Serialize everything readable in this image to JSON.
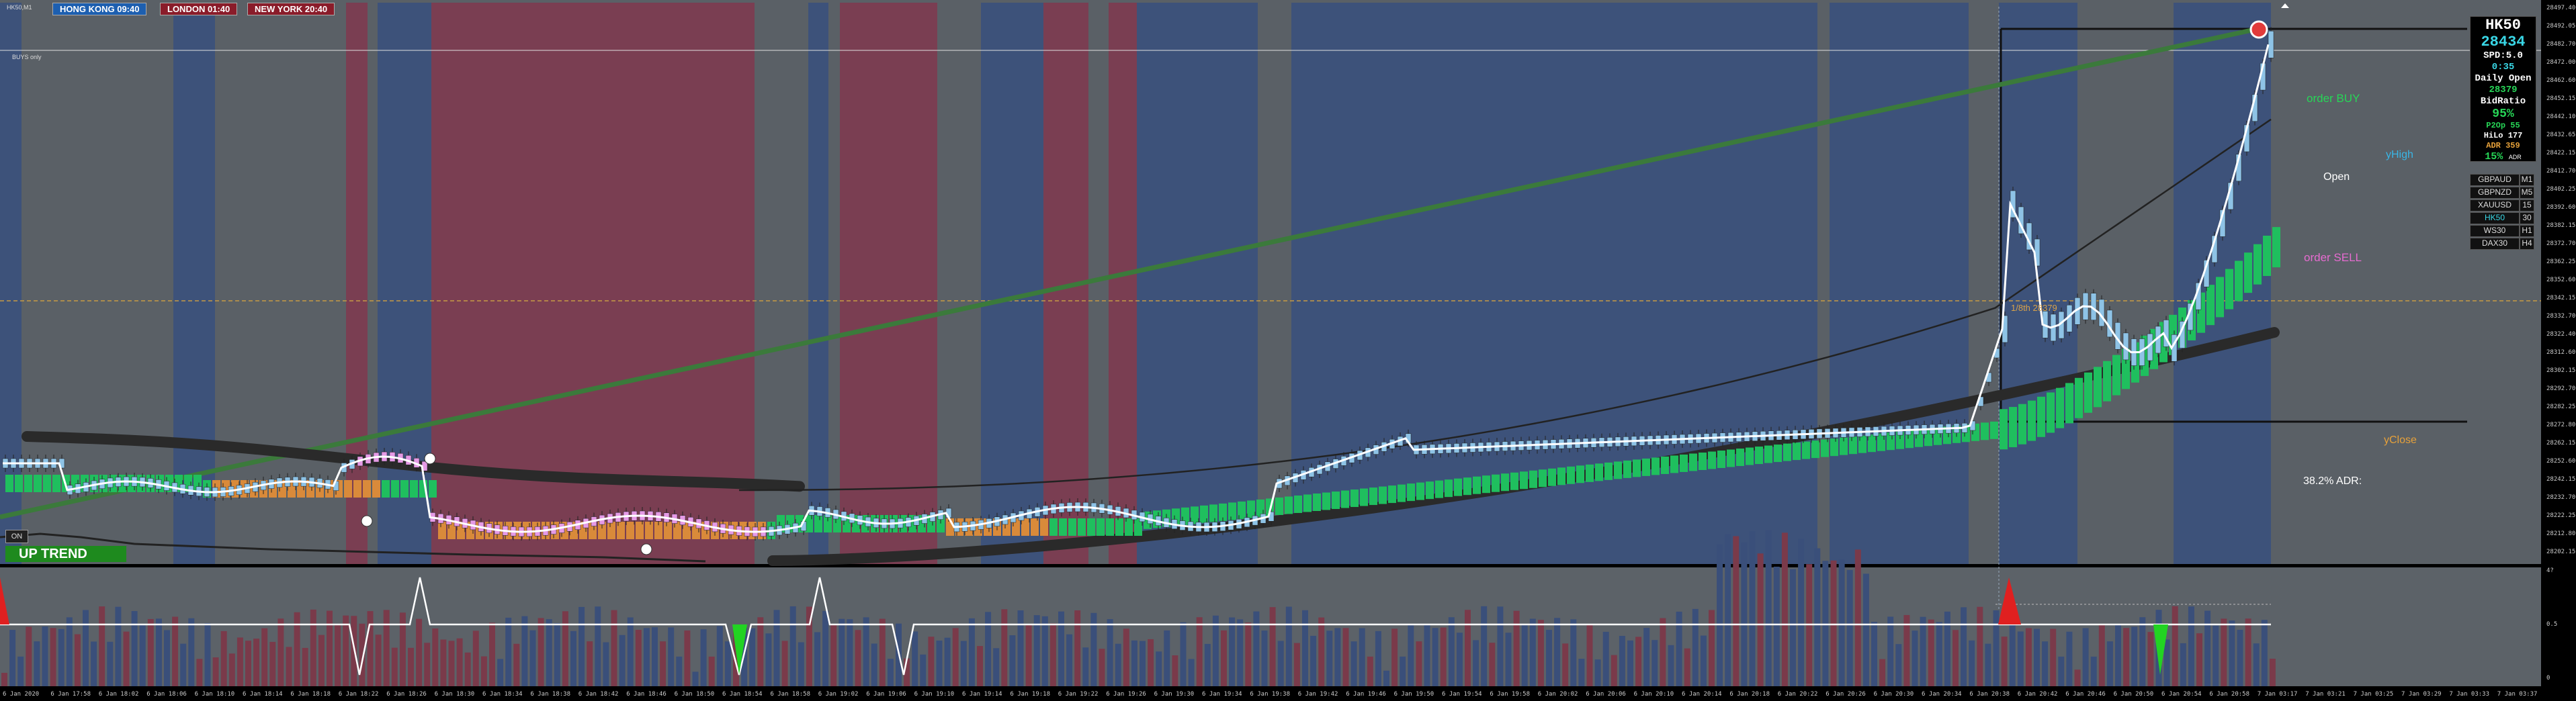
{
  "window": {
    "title": "HK50,M1",
    "label_tl": "BUYS only"
  },
  "sessions": [
    {
      "label": "HONG KONG 09:40",
      "color": "#1d5fb0"
    },
    {
      "label": "LONDON  01:40",
      "color": "#8a1c2a"
    },
    {
      "label": "NEW YORK 20:40",
      "color": "#8a1c2a"
    }
  ],
  "trend": {
    "label": "UP TREND",
    "on_label": "ON",
    "color": "#1e8a1e"
  },
  "panel": {
    "symbol": "HK50",
    "price": "28434",
    "spread": "SPD:5.0",
    "timer": "0:35",
    "daily_open_label": "Daily Open",
    "daily_open": "28379",
    "bidratio_label": "BidRatio",
    "bidratio": "95%",
    "p2op": "P2Op  55",
    "hilo": "HiLo  177",
    "adr": "ADR  359",
    "adr_pct": "15%",
    "adr_pct_suffix": "ADR"
  },
  "symbols": [
    {
      "name": "GBPAUD",
      "tf": "M1"
    },
    {
      "name": "GBPNZD",
      "tf": "M5"
    },
    {
      "name": "XAUUSD",
      "tf": "15"
    },
    {
      "name": "HK50",
      "tf": "30"
    },
    {
      "name": "WS30",
      "tf": "H1"
    },
    {
      "name": "DAX30",
      "tf": "H4"
    }
  ],
  "annotations": {
    "order_buy": "order BUY",
    "order_sell": "order SELL",
    "yhigh": "yHigh",
    "open": "Open",
    "yclose": "yClose",
    "adr_382": "38.2% ADR:",
    "eighth": "1/8th  28379"
  },
  "x_labels": [
    "6 Jan 2020",
    "6 Jan 17:58",
    "6 Jan 18:02",
    "6 Jan 18:06",
    "6 Jan 18:10",
    "6 Jan 18:14",
    "6 Jan 18:18",
    "6 Jan 18:22",
    "6 Jan 18:26",
    "6 Jan 18:30",
    "6 Jan 18:34",
    "6 Jan 18:38",
    "6 Jan 18:42",
    "6 Jan 18:46",
    "6 Jan 18:50",
    "6 Jan 18:54",
    "6 Jan 18:58",
    "6 Jan 19:02",
    "6 Jan 19:06",
    "6 Jan 19:10",
    "6 Jan 19:14",
    "6 Jan 19:18",
    "6 Jan 19:22",
    "6 Jan 19:26",
    "6 Jan 19:30",
    "6 Jan 19:34",
    "6 Jan 19:38",
    "6 Jan 19:42",
    "6 Jan 19:46",
    "6 Jan 19:50",
    "6 Jan 19:54",
    "6 Jan 19:58",
    "6 Jan 20:02",
    "6 Jan 20:06",
    "6 Jan 20:10",
    "6 Jan 20:14",
    "6 Jan 20:18",
    "6 Jan 20:22",
    "6 Jan 20:26",
    "6 Jan 20:30",
    "6 Jan 20:34",
    "6 Jan 20:38",
    "6 Jan 20:42",
    "6 Jan 20:46",
    "6 Jan 20:50",
    "6 Jan 20:54",
    "6 Jan 20:58",
    "7 Jan 03:17",
    "7 Jan 03:21",
    "7 Jan 03:25",
    "7 Jan 03:29",
    "7 Jan 03:33",
    "7 Jan 03:37"
  ],
  "y_labels": [
    "28497.40",
    "28492.05",
    "28482.70",
    "28472.00",
    "28462.60",
    "28452.15",
    "28442.10",
    "28432.65",
    "28422.15",
    "28412.70",
    "28402.25",
    "28392.60",
    "28382.15",
    "28372.70",
    "28362.25",
    "28352.60",
    "28342.15",
    "28332.70",
    "28322.40",
    "28312.60",
    "28302.15",
    "28292.70",
    "28282.25",
    "28272.80",
    "28262.15",
    "28252.60",
    "28242.15",
    "28232.70",
    "28222.25",
    "28212.80",
    "28202.15"
  ],
  "sub_y_labels": [
    "4?",
    "0.5",
    "0"
  ],
  "colors": {
    "blue_band": "#3d527a",
    "red_band": "#7a3e52",
    "grey_band": "#5a6066",
    "green_bar": "#1fbf5e",
    "orange_bar": "#d98a3a",
    "pink_candle": "#e59ae6",
    "light_candle": "#8ec3e6",
    "trendline": "#3b7a3b"
  }
}
